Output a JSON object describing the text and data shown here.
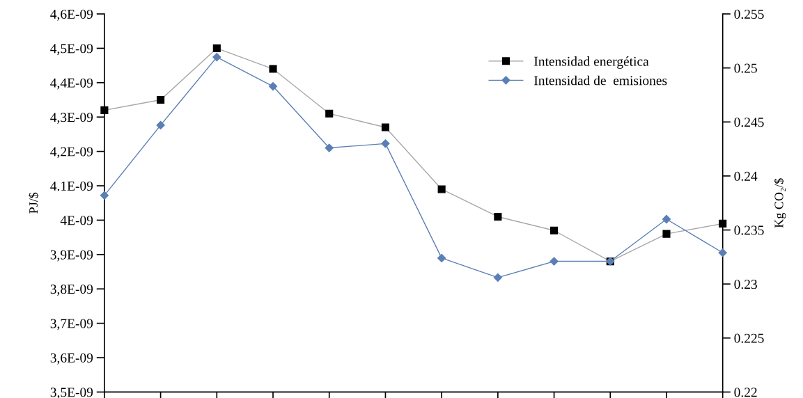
{
  "chart_data": {
    "type": "line",
    "categories": [
      null,
      null,
      null,
      null,
      null,
      null,
      null,
      null,
      null,
      null,
      null,
      null
    ],
    "series": [
      {
        "name": "Intensidad energética",
        "color": "#000000",
        "marker": "square",
        "values": [
          4.32e-09,
          4.35e-09,
          4.5e-09,
          4.44e-09,
          4.31e-09,
          4.27e-09,
          4.09e-09,
          4.01e-09,
          3.97e-09,
          3.88e-09,
          3.96e-09,
          3.99e-09
        ]
      },
      {
        "name": "Intensidad de  emisiones",
        "color": "#5b7fb5",
        "marker": "diamond",
        "axis": "y2",
        "values": [
          0.2382,
          0.2447,
          0.251,
          0.2483,
          0.2426,
          0.243,
          0.2324,
          0.2306,
          0.2321,
          0.2321,
          0.236,
          0.2329
        ]
      }
    ],
    "ylabel": "PJ/$",
    "y2label": "Kg CO₂/$",
    "ylim": [
      3.5e-09,
      4.6e-09
    ],
    "yticks": [
      {
        "value": 3.5e-09,
        "label": "3,5E-09"
      },
      {
        "value": 3.6e-09,
        "label": "3,6E-09"
      },
      {
        "value": 3.7e-09,
        "label": "3,7E-09"
      },
      {
        "value": 3.8e-09,
        "label": "3,8E-09"
      },
      {
        "value": 3.9e-09,
        "label": "3,9E-09"
      },
      {
        "value": 4e-09,
        "label": "4E-09"
      },
      {
        "value": 4.1e-09,
        "label": "4.1E-09"
      },
      {
        "value": 4.2e-09,
        "label": "4,2E-09"
      },
      {
        "value": 4.3e-09,
        "label": "4,3E-09"
      },
      {
        "value": 4.4e-09,
        "label": "4,4E-09"
      },
      {
        "value": 4.5e-09,
        "label": "4,5E-09"
      },
      {
        "value": 4.6e-09,
        "label": "4,6E-09"
      }
    ],
    "y2lim": [
      0.22,
      0.255
    ],
    "y2ticks": [
      {
        "value": 0.22,
        "label": "0.22"
      },
      {
        "value": 0.225,
        "label": "0.225"
      },
      {
        "value": 0.23,
        "label": "0.23"
      },
      {
        "value": 0.235,
        "label": "0.235"
      },
      {
        "value": 0.24,
        "label": "0.24"
      },
      {
        "value": 0.245,
        "label": "0.245"
      },
      {
        "value": 0.25,
        "label": "0.25"
      },
      {
        "value": 0.255,
        "label": "0.255"
      }
    ],
    "legend": "top right",
    "grid": false,
    "tick_labels": "y"
  }
}
